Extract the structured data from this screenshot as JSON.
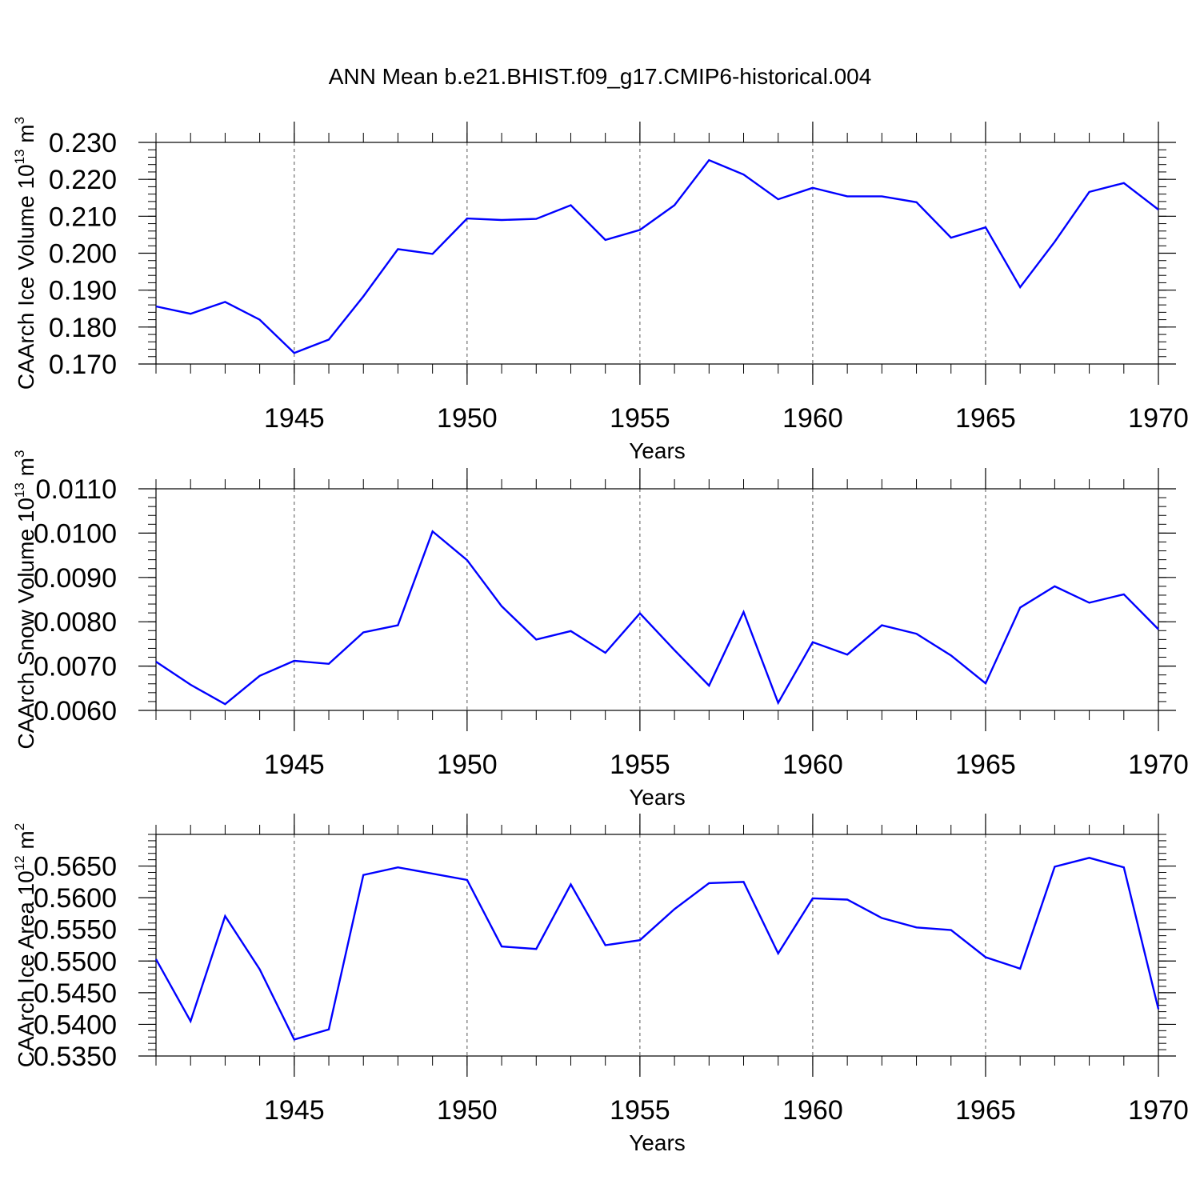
{
  "figure": {
    "title": "ANN Mean b.e21.BHIST.f09_g17.CMIP6-historical.004"
  },
  "chart_data": [
    {
      "type": "line",
      "xlabel": "Years",
      "ylabel": "CAArch Ice Volume 10",
      "ylabel_exponent": "13",
      "ylabel_unit": "m",
      "ylabel_unit_exponent": "3",
      "xlim": [
        1941,
        1970
      ],
      "ylim": [
        0.17,
        0.23
      ],
      "xticks": [
        1945,
        1950,
        1955,
        1960,
        1965,
        1970
      ],
      "yticks": [
        "0.170",
        "0.180",
        "0.190",
        "0.200",
        "0.210",
        "0.220",
        "0.230"
      ],
      "grid": "dashed vertical lines at major x ticks",
      "line_color": "#0000ff",
      "x": [
        1941,
        1942,
        1943,
        1944,
        1945,
        1946,
        1947,
        1948,
        1949,
        1950,
        1951,
        1952,
        1953,
        1954,
        1955,
        1956,
        1957,
        1958,
        1959,
        1960,
        1961,
        1962,
        1963,
        1964,
        1965,
        1966,
        1967,
        1968,
        1969,
        1970
      ],
      "values": [
        0.1856,
        0.1836,
        0.1868,
        0.182,
        0.173,
        0.1766,
        0.1883,
        0.2011,
        0.1998,
        0.2094,
        0.209,
        0.2093,
        0.213,
        0.2036,
        0.2063,
        0.213,
        0.2252,
        0.2213,
        0.2146,
        0.2177,
        0.2154,
        0.2154,
        0.2138,
        0.2042,
        0.207,
        0.1908,
        0.2031,
        0.2166,
        0.219,
        0.2118
      ]
    },
    {
      "type": "line",
      "xlabel": "Years",
      "ylabel": "CAArch Snow Volume 10",
      "ylabel_exponent": "13",
      "ylabel_unit": "m",
      "ylabel_unit_exponent": "3",
      "xlim": [
        1941,
        1970
      ],
      "ylim": [
        0.006,
        0.011
      ],
      "xticks": [
        1945,
        1950,
        1955,
        1960,
        1965,
        1970
      ],
      "yticks": [
        "0.0060",
        "0.0070",
        "0.0080",
        "0.0090",
        "0.0100",
        "0.0110"
      ],
      "grid": "dashed vertical lines at major x ticks",
      "line_color": "#0000ff",
      "x": [
        1941,
        1942,
        1943,
        1944,
        1945,
        1946,
        1947,
        1948,
        1949,
        1950,
        1951,
        1952,
        1953,
        1954,
        1955,
        1956,
        1957,
        1958,
        1959,
        1960,
        1961,
        1962,
        1963,
        1964,
        1965,
        1966,
        1967,
        1968,
        1969,
        1970
      ],
      "values": [
        0.0071,
        0.00658,
        0.00614,
        0.00678,
        0.00712,
        0.00705,
        0.00776,
        0.00792,
        0.01004,
        0.00939,
        0.00835,
        0.0076,
        0.00779,
        0.0073,
        0.00819,
        0.00736,
        0.00656,
        0.00822,
        0.00617,
        0.00754,
        0.00726,
        0.00792,
        0.00773,
        0.00724,
        0.00661,
        0.00832,
        0.0088,
        0.00843,
        0.00862,
        0.00783
      ]
    },
    {
      "type": "line",
      "xlabel": "Years",
      "ylabel": "CAArch Ice Area 10",
      "ylabel_exponent": "12",
      "ylabel_unit": "m",
      "ylabel_unit_exponent": "2",
      "xlim": [
        1941,
        1970
      ],
      "ylim": [
        0.535,
        0.57
      ],
      "xticks": [
        1945,
        1950,
        1955,
        1960,
        1965,
        1970
      ],
      "yticks": [
        "0.5350",
        "0.5400",
        "0.5450",
        "0.5500",
        "0.5550",
        "0.5600",
        "0.5650"
      ],
      "grid": "dashed vertical lines at major x ticks",
      "line_color": "#0000ff",
      "x": [
        1941,
        1942,
        1943,
        1944,
        1945,
        1946,
        1947,
        1948,
        1949,
        1950,
        1951,
        1952,
        1953,
        1954,
        1955,
        1956,
        1957,
        1958,
        1959,
        1960,
        1961,
        1962,
        1963,
        1964,
        1965,
        1966,
        1967,
        1968,
        1969,
        1970
      ],
      "values": [
        0.5503,
        0.5405,
        0.5571,
        0.5487,
        0.5376,
        0.5392,
        0.5636,
        0.5648,
        0.5638,
        0.5628,
        0.5523,
        0.5519,
        0.5621,
        0.5525,
        0.5533,
        0.5582,
        0.5623,
        0.5625,
        0.5512,
        0.5599,
        0.5597,
        0.5568,
        0.5553,
        0.5549,
        0.5506,
        0.5488,
        0.5649,
        0.5663,
        0.5648,
        0.5424
      ]
    }
  ]
}
